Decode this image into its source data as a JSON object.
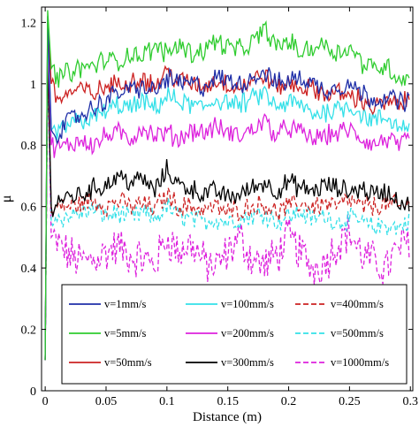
{
  "chart_data": {
    "type": "line",
    "title": "",
    "xlabel": "Distance (m)",
    "ylabel": "μ",
    "xlim": [
      -0.003,
      0.302
    ],
    "ylim": [
      0,
      1.25
    ],
    "xticks": [
      0,
      0.05,
      0.1,
      0.15,
      0.2,
      0.25,
      0.3
    ],
    "xtick_labels": [
      "0",
      "0.05",
      "0.1",
      "0.15",
      "0.2",
      "0.25",
      "0.3"
    ],
    "yticks": [
      0,
      0.2,
      0.4,
      0.6,
      0.8,
      1.0,
      1.2
    ],
    "ytick_labels": [
      "0",
      "0.2",
      "0.4",
      "0.6",
      "0.8",
      "1",
      "1.2"
    ],
    "grid": false,
    "legend_position": "bottom",
    "legend_columns": 3,
    "x": [
      0,
      0.002,
      0.005,
      0.01,
      0.02,
      0.03,
      0.04,
      0.05,
      0.06,
      0.07,
      0.08,
      0.09,
      0.1,
      0.11,
      0.12,
      0.13,
      0.14,
      0.15,
      0.16,
      0.17,
      0.18,
      0.19,
      0.2,
      0.21,
      0.22,
      0.23,
      0.24,
      0.25,
      0.26,
      0.27,
      0.28,
      0.29,
      0.3
    ],
    "series": [
      {
        "name": "v=1mm/s",
        "color": "#1f2fa8",
        "dash": "solid",
        "values": [
          0.1,
          1.22,
          0.85,
          0.84,
          0.88,
          0.9,
          0.92,
          0.95,
          0.97,
          0.98,
          0.99,
          0.97,
          1.02,
          1.0,
          1.0,
          0.99,
          1.02,
          1.01,
          1.0,
          1.02,
          1.04,
          1.0,
          1.01,
          1.02,
          1.0,
          0.98,
          0.99,
          1.0,
          0.97,
          0.95,
          0.96,
          0.94,
          0.95
        ]
      },
      {
        "name": "v=5mm/s",
        "color": "#2fcc2f",
        "dash": "solid",
        "values": [
          0.1,
          1.24,
          1.05,
          1.02,
          1.04,
          1.05,
          1.06,
          1.08,
          1.07,
          1.1,
          1.09,
          1.12,
          1.1,
          1.13,
          1.1,
          1.11,
          1.14,
          1.12,
          1.11,
          1.13,
          1.18,
          1.12,
          1.14,
          1.1,
          1.12,
          1.13,
          1.1,
          1.12,
          1.07,
          1.05,
          1.06,
          1.02,
          1.02
        ]
      },
      {
        "name": "v=50mm/s",
        "color": "#cc2222",
        "dash": "solid",
        "values": [
          0.1,
          1.2,
          1.0,
          0.95,
          0.97,
          0.98,
          0.97,
          0.99,
          1.0,
          1.01,
          1.02,
          0.99,
          1.04,
          1.01,
          1.0,
          0.99,
          1.01,
          1.0,
          0.99,
          1.01,
          1.03,
          0.99,
          1.0,
          0.99,
          0.98,
          0.97,
          0.97,
          0.96,
          0.95,
          0.92,
          0.94,
          0.93,
          0.95
        ]
      },
      {
        "name": "v=100mm/s",
        "color": "#33e0e8",
        "dash": "solid",
        "values": [
          0.1,
          1.18,
          0.85,
          0.84,
          0.87,
          0.88,
          0.89,
          0.91,
          0.93,
          0.92,
          0.94,
          0.92,
          0.96,
          0.94,
          0.93,
          0.92,
          0.95,
          0.94,
          0.93,
          0.95,
          0.97,
          0.92,
          0.94,
          0.93,
          0.9,
          0.91,
          0.92,
          0.93,
          0.9,
          0.88,
          0.89,
          0.86,
          0.87
        ]
      },
      {
        "name": "v=200mm/s",
        "color": "#dd22dd",
        "dash": "solid",
        "values": [
          0.1,
          1.15,
          0.8,
          0.79,
          0.8,
          0.82,
          0.8,
          0.83,
          0.84,
          0.82,
          0.86,
          0.83,
          0.84,
          0.82,
          0.85,
          0.84,
          0.86,
          0.84,
          0.83,
          0.85,
          0.88,
          0.83,
          0.86,
          0.84,
          0.82,
          0.83,
          0.84,
          0.85,
          0.82,
          0.8,
          0.82,
          0.8,
          0.81
        ]
      },
      {
        "name": "v=300mm/s",
        "color": "#000000",
        "dash": "solid",
        "values": [
          0.1,
          1.1,
          0.6,
          0.62,
          0.63,
          0.64,
          0.66,
          0.67,
          0.7,
          0.68,
          0.69,
          0.65,
          0.72,
          0.67,
          0.66,
          0.64,
          0.65,
          0.63,
          0.64,
          0.66,
          0.68,
          0.65,
          0.68,
          0.66,
          0.65,
          0.67,
          0.66,
          0.65,
          0.66,
          0.64,
          0.65,
          0.62,
          0.6
        ]
      },
      {
        "name": "v=400mm/s",
        "color": "#cc2222",
        "dash": "dashed",
        "values": [
          0.1,
          1.08,
          0.58,
          0.6,
          0.6,
          0.61,
          0.62,
          0.6,
          0.62,
          0.6,
          0.61,
          0.59,
          0.64,
          0.6,
          0.6,
          0.59,
          0.6,
          0.58,
          0.59,
          0.6,
          0.61,
          0.58,
          0.6,
          0.61,
          0.6,
          0.61,
          0.6,
          0.62,
          0.6,
          0.6,
          0.61,
          0.6,
          0.6
        ]
      },
      {
        "name": "v=500mm/s",
        "color": "#33e0e8",
        "dash": "dashed",
        "values": [
          0.1,
          1.06,
          0.55,
          0.56,
          0.57,
          0.58,
          0.59,
          0.57,
          0.58,
          0.56,
          0.58,
          0.56,
          0.6,
          0.57,
          0.56,
          0.55,
          0.56,
          0.55,
          0.56,
          0.57,
          0.58,
          0.55,
          0.57,
          0.58,
          0.56,
          0.57,
          0.55,
          0.56,
          0.55,
          0.53,
          0.54,
          0.53,
          0.56
        ]
      },
      {
        "name": "v=1000mm/s",
        "color": "#dd22dd",
        "dash": "dashed",
        "values": [
          0.1,
          1.04,
          0.5,
          0.48,
          0.44,
          0.42,
          0.43,
          0.45,
          0.47,
          0.44,
          0.43,
          0.41,
          0.5,
          0.45,
          0.48,
          0.42,
          0.4,
          0.45,
          0.5,
          0.43,
          0.41,
          0.44,
          0.5,
          0.45,
          0.4,
          0.42,
          0.48,
          0.52,
          0.44,
          0.42,
          0.4,
          0.46,
          0.5
        ]
      }
    ]
  }
}
